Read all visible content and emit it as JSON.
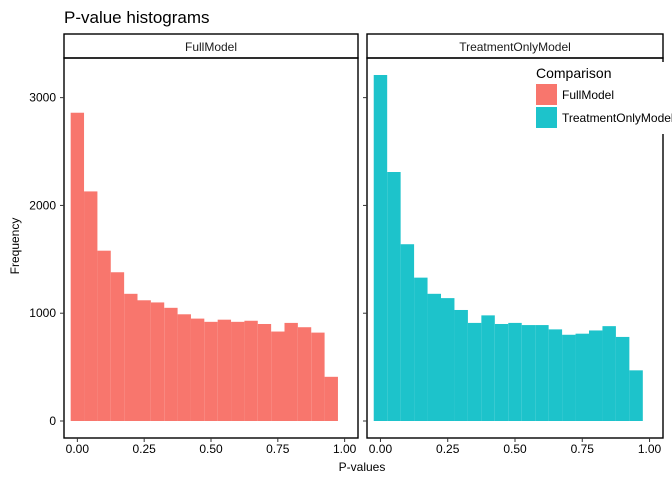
{
  "chart_data": {
    "type": "bar",
    "title": "P-value histograms",
    "xlabel": "P-values",
    "ylabel": "Frequency",
    "xlim": [
      -0.05,
      1.05
    ],
    "ylim": [
      0,
      3350
    ],
    "x_ticks": [
      0.0,
      0.25,
      0.5,
      0.75,
      1.0
    ],
    "x_tick_labels": [
      "0.00",
      "0.25",
      "0.50",
      "0.75",
      "1.00"
    ],
    "y_ticks": [
      0,
      1000,
      2000,
      3000
    ],
    "y_tick_labels": [
      "0",
      "1000",
      "2000",
      "3000"
    ],
    "bin_width": 0.05,
    "bin_centers": [
      0.0,
      0.05,
      0.1,
      0.15,
      0.2,
      0.25,
      0.3,
      0.35,
      0.4,
      0.45,
      0.5,
      0.55,
      0.6,
      0.65,
      0.7,
      0.75,
      0.8,
      0.85,
      0.9,
      0.95,
      1.0
    ],
    "legend": {
      "title": "Comparison",
      "placement": "top-right"
    },
    "grid": false,
    "panels": [
      {
        "name": "FullModel",
        "color": "#F8766D",
        "values": [
          2860,
          2130,
          1580,
          1380,
          1180,
          1120,
          1100,
          1050,
          990,
          950,
          920,
          940,
          920,
          930,
          900,
          830,
          910,
          870,
          820,
          410,
          0
        ]
      },
      {
        "name": "TreatmentOnlyModel",
        "color": "#1DC3CB",
        "values": [
          3210,
          2310,
          1640,
          1330,
          1180,
          1140,
          1030,
          910,
          980,
          900,
          910,
          890,
          890,
          850,
          800,
          810,
          840,
          880,
          780,
          470,
          0
        ]
      }
    ]
  }
}
